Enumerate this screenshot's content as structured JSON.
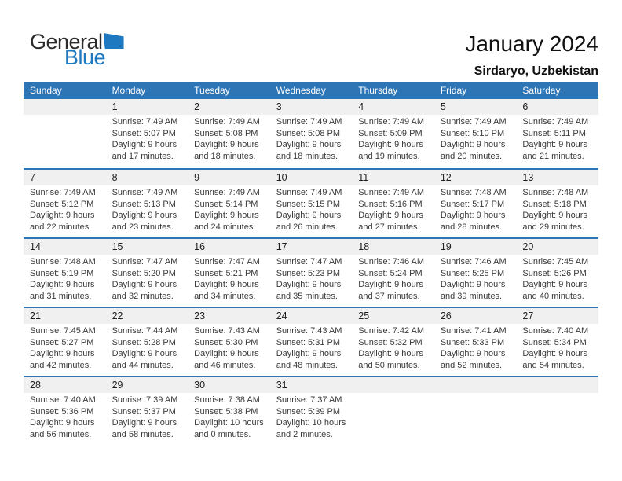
{
  "logo": {
    "part1": "General",
    "part2": "Blue",
    "triangle_icon": "blue-sail-triangle"
  },
  "header": {
    "month_title": "January 2024",
    "location": "Sirdaryo, Uzbekistan"
  },
  "colors": {
    "header_bg": "#2e75b6",
    "row_border": "#2e75b6",
    "number_band_bg": "#f0f0f0",
    "logo_blue": "#1e79c0"
  },
  "calendar": {
    "weekdays": [
      "Sunday",
      "Monday",
      "Tuesday",
      "Wednesday",
      "Thursday",
      "Friday",
      "Saturday"
    ],
    "weeks": [
      [
        {
          "day": "",
          "lines": []
        },
        {
          "day": "1",
          "lines": [
            "Sunrise: 7:49 AM",
            "Sunset: 5:07 PM",
            "Daylight: 9 hours",
            "and 17 minutes."
          ]
        },
        {
          "day": "2",
          "lines": [
            "Sunrise: 7:49 AM",
            "Sunset: 5:08 PM",
            "Daylight: 9 hours",
            "and 18 minutes."
          ]
        },
        {
          "day": "3",
          "lines": [
            "Sunrise: 7:49 AM",
            "Sunset: 5:08 PM",
            "Daylight: 9 hours",
            "and 18 minutes."
          ]
        },
        {
          "day": "4",
          "lines": [
            "Sunrise: 7:49 AM",
            "Sunset: 5:09 PM",
            "Daylight: 9 hours",
            "and 19 minutes."
          ]
        },
        {
          "day": "5",
          "lines": [
            "Sunrise: 7:49 AM",
            "Sunset: 5:10 PM",
            "Daylight: 9 hours",
            "and 20 minutes."
          ]
        },
        {
          "day": "6",
          "lines": [
            "Sunrise: 7:49 AM",
            "Sunset: 5:11 PM",
            "Daylight: 9 hours",
            "and 21 minutes."
          ]
        }
      ],
      [
        {
          "day": "7",
          "lines": [
            "Sunrise: 7:49 AM",
            "Sunset: 5:12 PM",
            "Daylight: 9 hours",
            "and 22 minutes."
          ]
        },
        {
          "day": "8",
          "lines": [
            "Sunrise: 7:49 AM",
            "Sunset: 5:13 PM",
            "Daylight: 9 hours",
            "and 23 minutes."
          ]
        },
        {
          "day": "9",
          "lines": [
            "Sunrise: 7:49 AM",
            "Sunset: 5:14 PM",
            "Daylight: 9 hours",
            "and 24 minutes."
          ]
        },
        {
          "day": "10",
          "lines": [
            "Sunrise: 7:49 AM",
            "Sunset: 5:15 PM",
            "Daylight: 9 hours",
            "and 26 minutes."
          ]
        },
        {
          "day": "11",
          "lines": [
            "Sunrise: 7:49 AM",
            "Sunset: 5:16 PM",
            "Daylight: 9 hours",
            "and 27 minutes."
          ]
        },
        {
          "day": "12",
          "lines": [
            "Sunrise: 7:48 AM",
            "Sunset: 5:17 PM",
            "Daylight: 9 hours",
            "and 28 minutes."
          ]
        },
        {
          "day": "13",
          "lines": [
            "Sunrise: 7:48 AM",
            "Sunset: 5:18 PM",
            "Daylight: 9 hours",
            "and 29 minutes."
          ]
        }
      ],
      [
        {
          "day": "14",
          "lines": [
            "Sunrise: 7:48 AM",
            "Sunset: 5:19 PM",
            "Daylight: 9 hours",
            "and 31 minutes."
          ]
        },
        {
          "day": "15",
          "lines": [
            "Sunrise: 7:47 AM",
            "Sunset: 5:20 PM",
            "Daylight: 9 hours",
            "and 32 minutes."
          ]
        },
        {
          "day": "16",
          "lines": [
            "Sunrise: 7:47 AM",
            "Sunset: 5:21 PM",
            "Daylight: 9 hours",
            "and 34 minutes."
          ]
        },
        {
          "day": "17",
          "lines": [
            "Sunrise: 7:47 AM",
            "Sunset: 5:23 PM",
            "Daylight: 9 hours",
            "and 35 minutes."
          ]
        },
        {
          "day": "18",
          "lines": [
            "Sunrise: 7:46 AM",
            "Sunset: 5:24 PM",
            "Daylight: 9 hours",
            "and 37 minutes."
          ]
        },
        {
          "day": "19",
          "lines": [
            "Sunrise: 7:46 AM",
            "Sunset: 5:25 PM",
            "Daylight: 9 hours",
            "and 39 minutes."
          ]
        },
        {
          "day": "20",
          "lines": [
            "Sunrise: 7:45 AM",
            "Sunset: 5:26 PM",
            "Daylight: 9 hours",
            "and 40 minutes."
          ]
        }
      ],
      [
        {
          "day": "21",
          "lines": [
            "Sunrise: 7:45 AM",
            "Sunset: 5:27 PM",
            "Daylight: 9 hours",
            "and 42 minutes."
          ]
        },
        {
          "day": "22",
          "lines": [
            "Sunrise: 7:44 AM",
            "Sunset: 5:28 PM",
            "Daylight: 9 hours",
            "and 44 minutes."
          ]
        },
        {
          "day": "23",
          "lines": [
            "Sunrise: 7:43 AM",
            "Sunset: 5:30 PM",
            "Daylight: 9 hours",
            "and 46 minutes."
          ]
        },
        {
          "day": "24",
          "lines": [
            "Sunrise: 7:43 AM",
            "Sunset: 5:31 PM",
            "Daylight: 9 hours",
            "and 48 minutes."
          ]
        },
        {
          "day": "25",
          "lines": [
            "Sunrise: 7:42 AM",
            "Sunset: 5:32 PM",
            "Daylight: 9 hours",
            "and 50 minutes."
          ]
        },
        {
          "day": "26",
          "lines": [
            "Sunrise: 7:41 AM",
            "Sunset: 5:33 PM",
            "Daylight: 9 hours",
            "and 52 minutes."
          ]
        },
        {
          "day": "27",
          "lines": [
            "Sunrise: 7:40 AM",
            "Sunset: 5:34 PM",
            "Daylight: 9 hours",
            "and 54 minutes."
          ]
        }
      ],
      [
        {
          "day": "28",
          "lines": [
            "Sunrise: 7:40 AM",
            "Sunset: 5:36 PM",
            "Daylight: 9 hours",
            "and 56 minutes."
          ]
        },
        {
          "day": "29",
          "lines": [
            "Sunrise: 7:39 AM",
            "Sunset: 5:37 PM",
            "Daylight: 9 hours",
            "and 58 minutes."
          ]
        },
        {
          "day": "30",
          "lines": [
            "Sunrise: 7:38 AM",
            "Sunset: 5:38 PM",
            "Daylight: 10 hours",
            "and 0 minutes."
          ]
        },
        {
          "day": "31",
          "lines": [
            "Sunrise: 7:37 AM",
            "Sunset: 5:39 PM",
            "Daylight: 10 hours",
            "and 2 minutes."
          ]
        },
        {
          "day": "",
          "lines": []
        },
        {
          "day": "",
          "lines": []
        },
        {
          "day": "",
          "lines": []
        }
      ]
    ]
  }
}
